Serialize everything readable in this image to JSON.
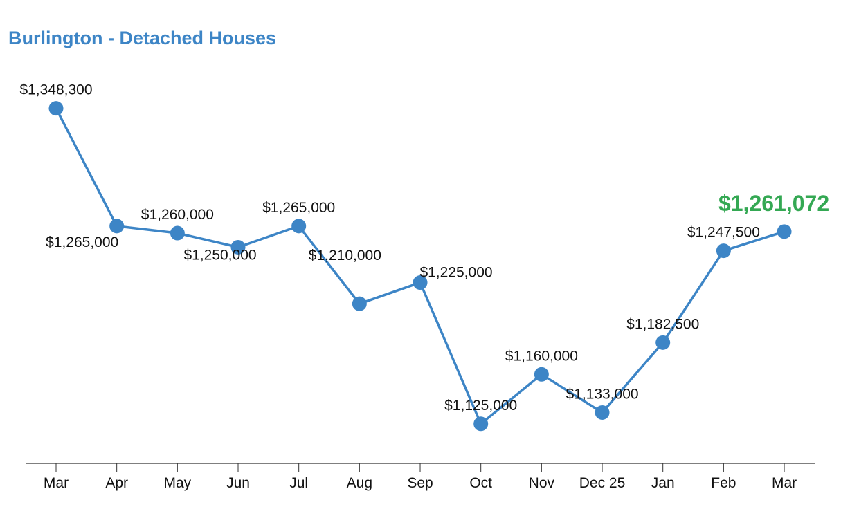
{
  "chart_data": {
    "type": "line",
    "title": "Burlington - Detached Houses",
    "xlabel": "",
    "ylabel": "",
    "categories": [
      "Mar",
      "Apr",
      "May",
      "Jun",
      "Jul",
      "Aug",
      "Sep",
      "Oct",
      "Nov",
      "Dec 25",
      "Jan",
      "Feb",
      "Mar"
    ],
    "series": [
      {
        "name": "Burlington - Detached Houses",
        "values": [
          1348300,
          1265000,
          1260000,
          1250000,
          1265000,
          1210000,
          1225000,
          1125000,
          1160000,
          1133000,
          1182500,
          1247500,
          1261072
        ],
        "labels": [
          "$1,348,300",
          "$1,265,000",
          "$1,260,000",
          "$1,250,000",
          "$1,265,000",
          "$1,210,000",
          "$1,225,000",
          "$1,125,000",
          "$1,160,000",
          "$1,133,000",
          "$1,182,500",
          "$1,247,500",
          "$1,261,072"
        ]
      }
    ],
    "highlight_index": 12,
    "ylim": [
      1097000,
      1425000
    ],
    "grid": false,
    "legend": "none",
    "colors": {
      "line": "#3d85c6",
      "highlight": "#34a853",
      "title": "#3d85c6",
      "axis": "#333333"
    }
  }
}
